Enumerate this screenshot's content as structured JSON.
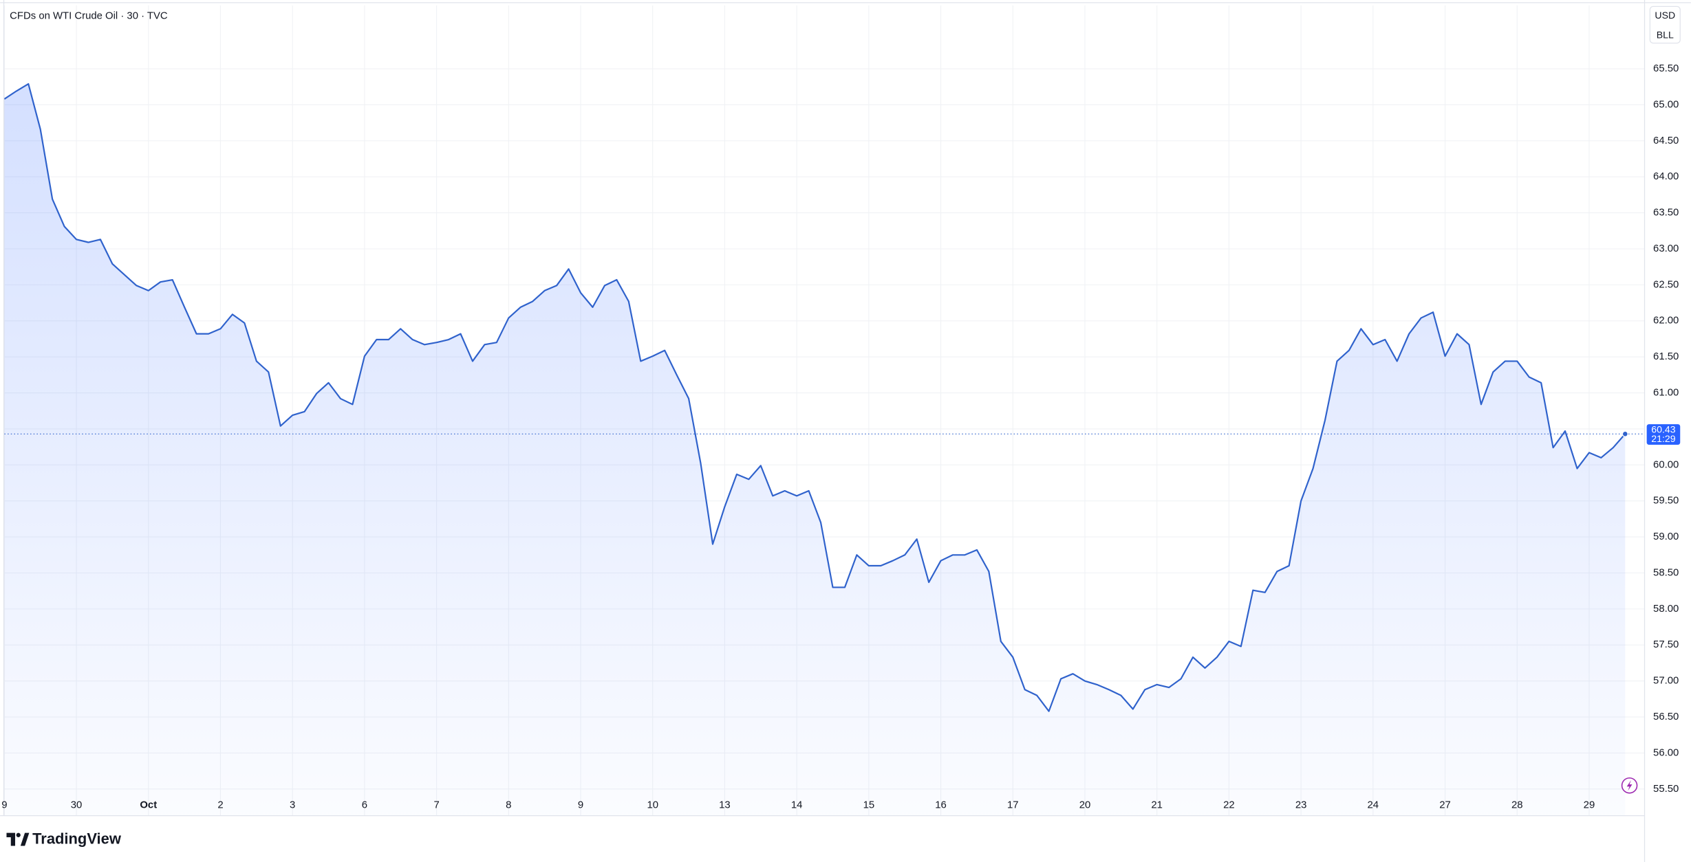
{
  "chart_data": {
    "type": "area",
    "title": "CFDs on WTI Crude Oil · 30 · TVC",
    "currency": "USD",
    "unit": "BLL",
    "countdown": "21:29",
    "brand": "TradingView",
    "color": "#2f62cc",
    "grid": true,
    "ylim": [
      55.13,
      66.38
    ],
    "yticks": [
      {
        "value": 55.5,
        "label": "55.50"
      },
      {
        "value": 56,
        "label": "56.00"
      },
      {
        "value": 56.5,
        "label": "56.50"
      },
      {
        "value": 57,
        "label": "57.00"
      },
      {
        "value": 57.5,
        "label": "57.50"
      },
      {
        "value": 58,
        "label": "58.00"
      },
      {
        "value": 58.5,
        "label": "58.50"
      },
      {
        "value": 59,
        "label": "59.00"
      },
      {
        "value": 59.5,
        "label": "59.50"
      },
      {
        "value": 60,
        "label": "60.00"
      },
      {
        "value": 60.5,
        "label": "60.50"
      },
      {
        "value": 61,
        "label": "61.00"
      },
      {
        "value": 61.5,
        "label": "61.50"
      },
      {
        "value": 62,
        "label": "62.00"
      },
      {
        "value": 62.5,
        "label": "62.50"
      },
      {
        "value": 63,
        "label": "63.00"
      },
      {
        "value": 63.5,
        "label": "63.50"
      },
      {
        "value": 64,
        "label": "64.00"
      },
      {
        "value": 64.5,
        "label": "64.50"
      },
      {
        "value": 65,
        "label": "65.00"
      },
      {
        "value": 65.5,
        "label": "65.50"
      }
    ],
    "categories": [
      "9",
      null,
      null,
      null,
      null,
      null,
      "30",
      null,
      null,
      null,
      null,
      null,
      "Oct",
      null,
      null,
      null,
      null,
      null,
      "2",
      null,
      null,
      null,
      null,
      null,
      "3",
      null,
      null,
      null,
      null,
      null,
      "6",
      null,
      null,
      null,
      null,
      null,
      "7",
      null,
      null,
      null,
      null,
      null,
      "8",
      null,
      null,
      null,
      null,
      null,
      "9",
      null,
      null,
      null,
      null,
      null,
      "10",
      null,
      null,
      null,
      null,
      null,
      "13",
      null,
      null,
      null,
      null,
      null,
      "14",
      null,
      null,
      null,
      null,
      null,
      "15",
      null,
      null,
      null,
      null,
      null,
      "16",
      null,
      null,
      null,
      null,
      null,
      "17",
      null,
      null,
      null,
      null,
      null,
      "20",
      null,
      null,
      null,
      null,
      null,
      "21",
      null,
      null,
      null,
      null,
      null,
      "22",
      null,
      null,
      null,
      null,
      null,
      "23",
      null,
      null,
      null,
      null,
      null,
      "24",
      null,
      null,
      null,
      null,
      null,
      "27",
      null,
      null,
      null,
      null,
      null,
      "28",
      null,
      null,
      null,
      null,
      null,
      "29",
      null,
      null,
      null
    ],
    "values": [
      65.08,
      65.19,
      65.29,
      64.66,
      63.69,
      63.31,
      63.13,
      63.09,
      63.13,
      62.79,
      62.64,
      62.49,
      62.42,
      62.54,
      62.57,
      62.19,
      61.82,
      61.82,
      61.89,
      62.09,
      61.97,
      61.44,
      61.29,
      60.54,
      60.69,
      60.74,
      60.99,
      61.14,
      60.92,
      60.84,
      61.51,
      61.74,
      61.74,
      61.89,
      61.74,
      61.67,
      61.7,
      61.74,
      61.82,
      61.44,
      61.67,
      61.7,
      62.04,
      62.19,
      62.27,
      62.42,
      62.49,
      62.72,
      62.39,
      62.19,
      62.49,
      62.57,
      62.27,
      61.44,
      61.51,
      61.59,
      61.25,
      60.92,
      60.02,
      58.9,
      59.42,
      59.87,
      59.8,
      59.99,
      59.57,
      59.64,
      59.57,
      59.64,
      59.2,
      58.3,
      58.3,
      58.75,
      58.6,
      58.6,
      58.67,
      58.75,
      58.97,
      58.37,
      58.67,
      58.75,
      58.75,
      58.82,
      58.52,
      57.55,
      57.33,
      56.88,
      56.8,
      56.58,
      57.03,
      57.1,
      57,
      56.95,
      56.88,
      56.8,
      56.61,
      56.88,
      56.95,
      56.91,
      57.03,
      57.33,
      57.18,
      57.33,
      57.55,
      57.48,
      58.26,
      58.23,
      58.52,
      58.6,
      59.5,
      59.95,
      60.62,
      61.44,
      61.59,
      61.89,
      61.67,
      61.74,
      61.44,
      61.82,
      62.04,
      62.12,
      61.51,
      61.82,
      61.67,
      60.84,
      61.29,
      61.44,
      61.44,
      61.22,
      61.14,
      60.24,
      60.47,
      59.95,
      60.17,
      60.1,
      60.24,
      60.43
    ]
  }
}
